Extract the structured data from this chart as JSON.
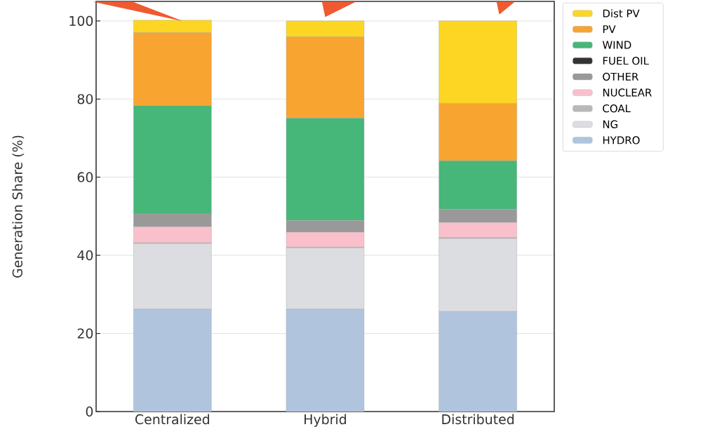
{
  "chart_data": {
    "type": "bar",
    "stacked": true,
    "ylabel": "Generation Share (%)",
    "categories": [
      "Centralized",
      "Hybrid",
      "Distributed"
    ],
    "series": [
      {
        "name": "HYDRO",
        "color": "#b0c4de",
        "values": [
          26.2,
          26.2,
          25.6
        ]
      },
      {
        "name": "NG",
        "color": "#dcdde0",
        "values": [
          16.8,
          15.7,
          18.7
        ]
      },
      {
        "name": "COAL",
        "color": "#b8b8b8",
        "values": [
          0.2,
          0.2,
          0.2
        ]
      },
      {
        "name": "NUCLEAR",
        "color": "#f9c0cc",
        "values": [
          4.1,
          3.8,
          3.9
        ]
      },
      {
        "name": "OTHER",
        "color": "#999999",
        "values": [
          3.3,
          3.0,
          3.4
        ]
      },
      {
        "name": "FUEL OIL",
        "color": "#333333",
        "values": [
          0,
          0,
          0
        ]
      },
      {
        "name": "WIND",
        "color": "#46b679",
        "values": [
          27.7,
          26.2,
          12.4
        ]
      },
      {
        "name": "PV",
        "color": "#f8a431",
        "values": [
          18.7,
          20.8,
          14.7
        ]
      },
      {
        "name": "Dist PV",
        "color": "#fcd622",
        "values": [
          3.2,
          4.1,
          21.1
        ]
      }
    ],
    "ylim": [
      0,
      105
    ],
    "yticks": [
      0,
      20,
      40,
      60,
      80,
      100
    ],
    "grid": "y",
    "legend": "right"
  }
}
